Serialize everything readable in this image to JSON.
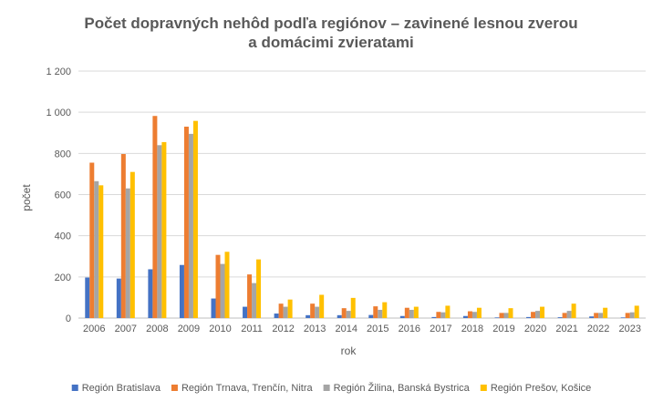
{
  "chart_data": {
    "type": "bar",
    "title_lines": [
      "Počet dopravných nehôd podľa regiónov – zavinené lesnou zverou",
      "a domácimi zvieratami"
    ],
    "xlabel": "rok",
    "ylabel": "počet",
    "ylim": [
      0,
      1200
    ],
    "yticks": [
      0,
      200,
      400,
      600,
      800,
      1000,
      1200
    ],
    "ytick_labels": [
      "0",
      "200",
      "400",
      "600",
      "800",
      "1 000",
      "1 200"
    ],
    "grid": true,
    "legend_position": "bottom",
    "categories": [
      "2006",
      "2007",
      "2008",
      "2009",
      "2010",
      "2011",
      "2012",
      "2013",
      "2014",
      "2015",
      "2016",
      "2017",
      "2018",
      "2019",
      "2020",
      "2021",
      "2022",
      "2023"
    ],
    "series": [
      {
        "name": "Región Bratislava",
        "color": "#4472C4",
        "values": [
          197,
          192,
          237,
          258,
          95,
          55,
          22,
          14,
          14,
          15,
          10,
          5,
          10,
          3,
          5,
          4,
          8,
          3
        ]
      },
      {
        "name": "Región Trnava, Trenčín, Nitra",
        "color": "#ED7D31",
        "values": [
          755,
          797,
          982,
          930,
          307,
          212,
          70,
          70,
          48,
          57,
          50,
          30,
          33,
          25,
          30,
          25,
          25,
          25
        ]
      },
      {
        "name": "Región Žilina, Banská Bystrica",
        "color": "#A5A5A5",
        "values": [
          665,
          630,
          840,
          895,
          263,
          170,
          55,
          55,
          35,
          40,
          40,
          28,
          30,
          25,
          35,
          35,
          25,
          28
        ]
      },
      {
        "name": "Región Prešov, Košice",
        "color": "#FFC000",
        "values": [
          645,
          710,
          855,
          958,
          322,
          285,
          90,
          113,
          98,
          77,
          55,
          60,
          50,
          48,
          55,
          70,
          50,
          60
        ]
      }
    ]
  },
  "colors": {
    "gridline": "#D9D9D9",
    "axis": "#BFBFBF",
    "text": "#595959"
  }
}
